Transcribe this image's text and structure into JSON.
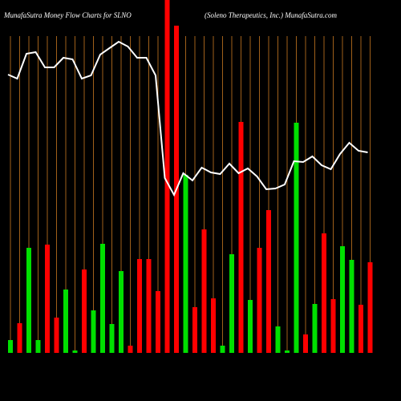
{
  "chart_data": {
    "type": "bar",
    "title": "MunafaSutra  Money Flow  Charts for SLNO",
    "subtitle": "(Soleno  Therapeutics,  Inc.) MunafaSutra.com",
    "categories": [
      null,
      null,
      null,
      null,
      null,
      null,
      null,
      null,
      null,
      null,
      null,
      null,
      null,
      null,
      null,
      null,
      null,
      null,
      null,
      null,
      null,
      null,
      null,
      null,
      null,
      null,
      null,
      null,
      null,
      null,
      null,
      null,
      null,
      null,
      null,
      null,
      null,
      null,
      null,
      null
    ],
    "values": [
      16,
      37,
      131,
      16,
      135,
      44,
      79,
      3,
      104,
      53,
      136,
      36,
      102,
      9,
      117,
      117,
      77,
      440,
      408,
      222,
      57,
      154,
      68,
      9,
      123,
      288,
      66,
      131,
      178,
      33,
      3,
      287,
      23,
      61,
      149,
      67,
      133,
      116,
      60,
      113
    ],
    "colors": [
      "#00e000",
      "#ff0000",
      "#00e000",
      "#00e000",
      "#ff0000",
      "#ff0000",
      "#00e000",
      "#00e000",
      "#ff0000",
      "#00e000",
      "#00e000",
      "#00e000",
      "#00e000",
      "#ff0000",
      "#ff0000",
      "#ff0000",
      "#ff0000",
      "#ff0000",
      "#ff0000",
      "#00e000",
      "#ff0000",
      "#ff0000",
      "#ff0000",
      "#00e000",
      "#00e000",
      "#ff0000",
      "#00e000",
      "#ff0000",
      "#ff0000",
      "#00e000",
      "#00e000",
      "#00e000",
      "#ff0000",
      "#00e000",
      "#ff0000",
      "#ff0000",
      "#00e000",
      "#00e000",
      "#ff0000",
      "#ff0000"
    ],
    "line": {
      "color": "#ffffff",
      "values": [
        347,
        342,
        373,
        375,
        356,
        356,
        368,
        366,
        342,
        346,
        372,
        380,
        388,
        382,
        368,
        368,
        346,
        218,
        197,
        224,
        215,
        231,
        225,
        223,
        236,
        224,
        230,
        220,
        204,
        205,
        210,
        239,
        238,
        245,
        234,
        229,
        248,
        262,
        252,
        250
      ]
    },
    "grid_color": "#a0601a",
    "ylim": [
      0,
      440
    ]
  }
}
